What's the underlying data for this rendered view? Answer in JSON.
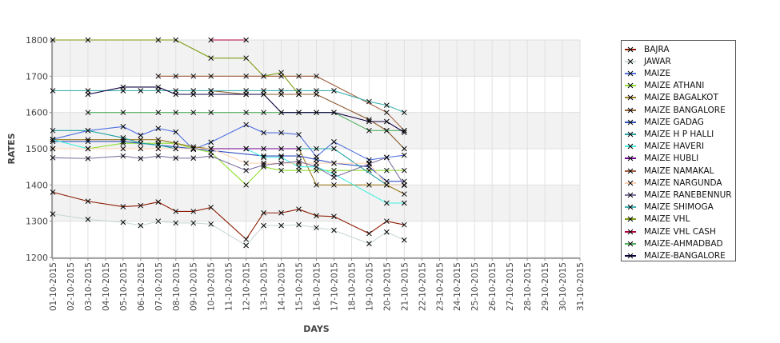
{
  "chart_data": {
    "type": "line",
    "title": "",
    "xlabel": "DAYS",
    "ylabel": "RATES",
    "ylim": [
      1200,
      1800
    ],
    "yticks": [
      1200,
      1300,
      1400,
      1500,
      1600,
      1700,
      1800
    ],
    "grid": true,
    "legend_position": "right",
    "categories": [
      "01-10-2015",
      "02-10-2015",
      "03-10-2015",
      "04-10-2015",
      "05-10-2015",
      "06-10-2015",
      "07-10-2015",
      "08-10-2015",
      "09-10-2015",
      "10-10-2015",
      "11-10-2015",
      "12-10-2015",
      "13-10-2015",
      "14-10-2015",
      "15-10-2015",
      "16-10-2015",
      "17-10-2015",
      "18-10-2015",
      "19-10-2015",
      "20-10-2015",
      "21-10-2015",
      "22-10-2015",
      "23-10-2015",
      "24-10-2015",
      "25-10-2015",
      "26-10-2015",
      "27-10-2015",
      "28-10-2015",
      "29-10-2015",
      "30-10-2015",
      "31-10-2015"
    ],
    "series": [
      {
        "name": "BAJRA",
        "color": "#8b1a00",
        "points": {
          "1": 1380,
          "3": 1355,
          "5": 1340,
          "6": 1343,
          "7": 1353,
          "8": 1327,
          "9": 1327,
          "10": 1338,
          "12": 1250,
          "13": 1323,
          "14": 1323,
          "15": 1333,
          "16": 1315,
          "17": 1313,
          "19": 1266,
          "20": 1300,
          "21": 1290
        }
      },
      {
        "name": "JAWAR",
        "color": "#c8d8d8",
        "points": {
          "1": 1320,
          "3": 1305,
          "5": 1297,
          "6": 1288,
          "7": 1300,
          "8": 1295,
          "9": 1295,
          "10": 1292,
          "12": 1233,
          "13": 1288,
          "14": 1288,
          "15": 1290,
          "16": 1282,
          "17": 1275,
          "19": 1238,
          "20": 1270,
          "21": 1248
        }
      },
      {
        "name": "MAIZE",
        "color": "#5070e0",
        "points": {
          "1": 1526,
          "3": 1550,
          "5": 1561,
          "6": 1537,
          "7": 1556,
          "8": 1546,
          "9": 1498,
          "10": 1518,
          "12": 1566,
          "13": 1544,
          "14": 1544,
          "15": 1539,
          "16": 1478,
          "17": 1519,
          "19": 1469,
          "20": 1476,
          "21": 1482
        }
      },
      {
        "name": "MAIZE ATHANI",
        "color": "#90e030",
        "points": {
          "1": 1500,
          "3": 1500,
          "5": 1515,
          "7": 1515,
          "8": 1515,
          "9": 1500,
          "10": 1490,
          "12": 1400,
          "13": 1450,
          "14": 1440,
          "15": 1440,
          "16": 1440,
          "17": 1440,
          "19": 1440,
          "20": 1440,
          "21": 1440
        }
      },
      {
        "name": "MAIZE BAGALKOT",
        "color": "#9a7a20",
        "points": {
          "1": 1525,
          "3": 1525,
          "5": 1525,
          "6": 1525,
          "7": 1525,
          "8": 1515,
          "9": 1505,
          "10": 1500,
          "15": 1500,
          "16": 1400,
          "17": 1400,
          "19": 1400,
          "20": 1400,
          "21": 1375
        }
      },
      {
        "name": "MAIZE BANGALORE",
        "color": "#8b5a2b",
        "points": {
          "10": 1660,
          "12": 1650,
          "13": 1650,
          "14": 1650,
          "15": 1650,
          "16": 1650,
          "19": 1580,
          "20": 1550,
          "21": 1500
        }
      },
      {
        "name": "MAIZE GADAG",
        "color": "#3050c0",
        "points": {
          "1": 1520,
          "3": 1520,
          "5": 1520,
          "13": 1480,
          "14": 1480,
          "15": 1480,
          "16": 1470,
          "17": 1460,
          "19": 1450,
          "20": 1410,
          "21": 1410
        }
      },
      {
        "name": "MAIZE H P HALLI",
        "color": "#20a0a0",
        "points": {
          "1": 1550,
          "3": 1550,
          "5": 1530,
          "6": 1515,
          "7": 1510,
          "8": 1500,
          "15": 1500,
          "16": 1500,
          "17": 1500,
          "20": 1400,
          "21": 1400
        }
      },
      {
        "name": "MAIZE HAVERI",
        "color": "#40f0e0",
        "points": {
          "1": 1525,
          "3": 1500,
          "12": 1500,
          "13": 1476,
          "14": 1476,
          "15": 1450,
          "16": 1450,
          "17": 1430,
          "20": 1350,
          "21": 1350
        }
      },
      {
        "name": "MAIZE HUBLI",
        "color": "#700090",
        "points": {
          "10": 1500,
          "12": 1500,
          "13": 1500,
          "14": 1500,
          "15": 1500
        }
      },
      {
        "name": "MAIZE NAMAKAL",
        "color": "#a06040",
        "points": {
          "7": 1700,
          "8": 1700,
          "9": 1700,
          "10": 1700,
          "12": 1700,
          "13": 1700,
          "14": 1700,
          "15": 1700,
          "16": 1700,
          "20": 1600,
          "21": 1550
        }
      },
      {
        "name": "MAIZE NARGUNDA",
        "color": "#ffd0b0",
        "points": {
          "1": 1500,
          "3": 1500,
          "5": 1500,
          "6": 1500,
          "7": 1500,
          "8": 1500,
          "9": 1500,
          "10": 1500,
          "12": 1460,
          "13": 1460,
          "14": 1460,
          "15": 1460,
          "16": 1460,
          "17": 1460,
          "19": 1460,
          "20": 1400,
          "21": 1400
        }
      },
      {
        "name": "MAIZE RANEBENNUR",
        "color": "#8070a0",
        "points": {
          "1": 1475,
          "3": 1473,
          "5": 1480,
          "6": 1473,
          "7": 1480,
          "8": 1474,
          "9": 1474,
          "10": 1480,
          "12": 1440,
          "13": 1455,
          "14": 1460,
          "15": 1465,
          "16": 1450,
          "17": 1421,
          "19": 1458,
          "20": 1476,
          "21": 1399
        }
      },
      {
        "name": "MAIZE SHIMOGA",
        "color": "#40b0b0",
        "points": {
          "1": 1660,
          "3": 1660,
          "5": 1660,
          "6": 1660,
          "7": 1660,
          "8": 1660,
          "9": 1660,
          "10": 1660,
          "12": 1660,
          "13": 1660,
          "14": 1660,
          "15": 1660,
          "16": 1660,
          "17": 1660,
          "19": 1630,
          "20": 1620,
          "21": 1600
        }
      },
      {
        "name": "MAIZE VHL",
        "color": "#7a9a10",
        "points": {
          "1": 1800,
          "3": 1800,
          "7": 1800,
          "8": 1800,
          "10": 1750,
          "12": 1750,
          "13": 1700,
          "14": 1710,
          "15": 1650
        }
      },
      {
        "name": "MAIZE VHL CASH",
        "color": "#b00040",
        "points": {
          "10": 1800,
          "12": 1800
        }
      },
      {
        "name": "MAIZE-AHMADBAD",
        "color": "#50b060",
        "points": {
          "3": 1600,
          "5": 1600,
          "7": 1600,
          "8": 1600,
          "9": 1600,
          "10": 1600,
          "12": 1600,
          "13": 1600,
          "14": 1600,
          "15": 1600,
          "16": 1600,
          "17": 1600,
          "19": 1550,
          "20": 1550,
          "21": 1550
        }
      },
      {
        "name": "MAIZE-BANGALORE",
        "color": "#100040",
        "points": {
          "3": 1650,
          "5": 1670,
          "7": 1670,
          "8": 1650,
          "9": 1650,
          "10": 1650,
          "12": 1650,
          "13": 1650,
          "14": 1600,
          "15": 1600,
          "16": 1600,
          "17": 1600,
          "19": 1575,
          "20": 1575,
          "21": 1545
        }
      }
    ]
  }
}
